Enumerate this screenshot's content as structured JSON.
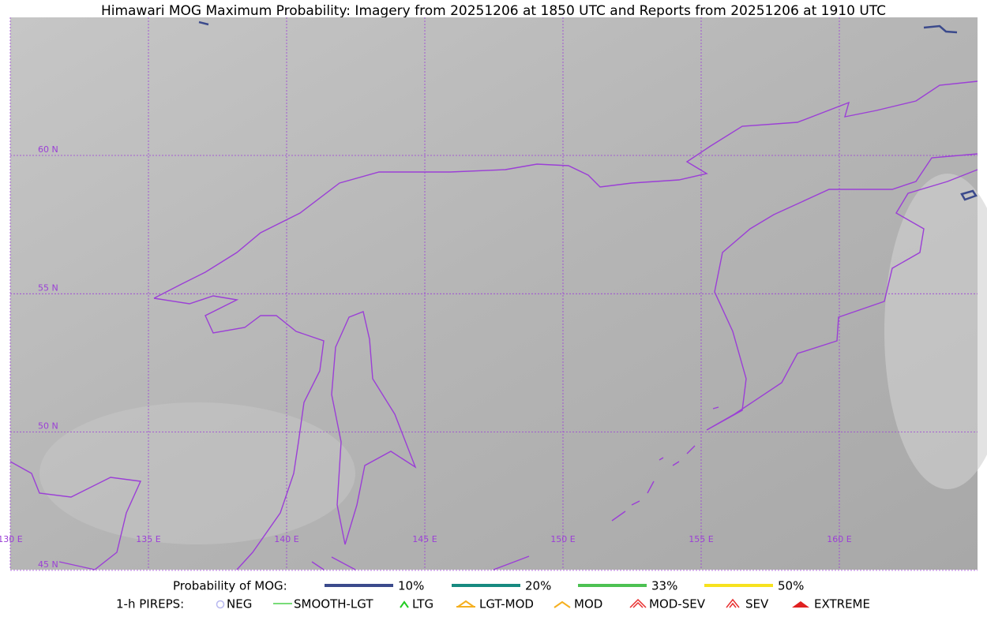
{
  "header": {
    "title": "Himawari MOG Maximum Probability: Imagery from 20251206 at 1850 UTC and Reports from 20251206 at 1910 UTC"
  },
  "map": {
    "longitude_labels": [
      "130 E",
      "135 E",
      "140 E",
      "145 E",
      "150 E",
      "155 E",
      "160 E"
    ],
    "latitude_labels": [
      "60 N",
      "55 N",
      "50 N",
      "45 N"
    ]
  },
  "legend": {
    "probability": {
      "title": "Probability of MOG:",
      "items": [
        {
          "label": "10%",
          "color": "#3b4a8c"
        },
        {
          "label": "20%",
          "color": "#178a80"
        },
        {
          "label": "33%",
          "color": "#4cc152"
        },
        {
          "label": "50%",
          "color": "#f7e21e"
        }
      ]
    },
    "pireps": {
      "title": "1-h PIREPS:",
      "items": [
        "NEG",
        "SMOOTH-LGT",
        "LTG",
        "LGT-MOD",
        "MOD",
        "MOD-SEV",
        "SEV",
        "EXTREME"
      ]
    }
  }
}
